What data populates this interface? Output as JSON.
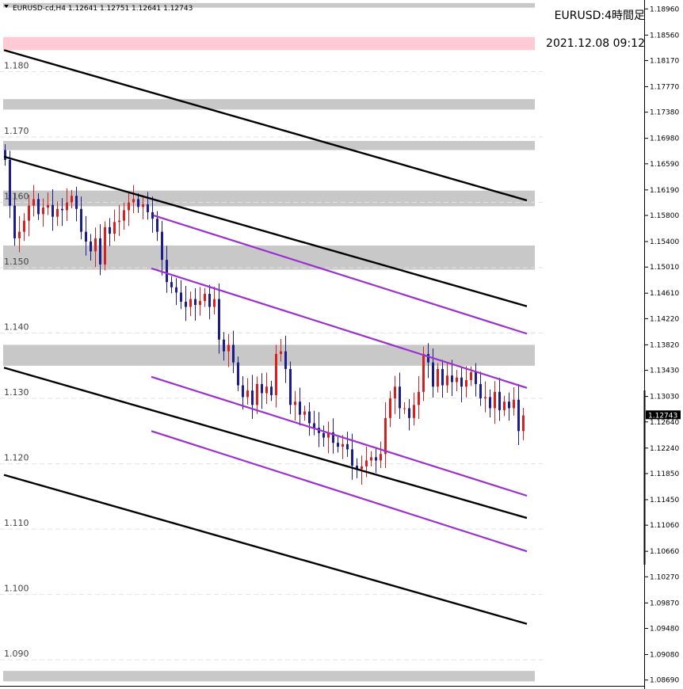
{
  "header": {
    "symbol_line": "EURUSD-cd,H4  1.12641 1.12751 1.12641 1.12743",
    "title": "EURUSD:4時間足",
    "timestamp": "2021.12.08 09:12"
  },
  "colors": {
    "bull": "#d62020",
    "bear": "#1c1c8a",
    "channel_black": "#000000",
    "channel_purple": "#9b30d0",
    "zone_gray": "#c8c8c8",
    "zone_pink": "#ffcad4",
    "grid": "#e2e2e2"
  },
  "chart_data": {
    "type": "candlestick",
    "ylim": [
      1.0865,
      1.1903
    ],
    "left_ticks": [
      "1.180",
      "1.170",
      "1.160",
      "1.150",
      "1.140",
      "1.130",
      "1.120",
      "1.110",
      "1.100",
      "1.090"
    ],
    "left_tick_values": [
      1.18,
      1.17,
      1.16,
      1.15,
      1.14,
      1.13,
      1.12,
      1.11,
      1.1,
      1.09
    ],
    "right_ticks": [
      "1.18960",
      "1.18560",
      "1.18170",
      "1.17770",
      "1.17380",
      "1.16980",
      "1.16590",
      "1.16190",
      "1.15800",
      "1.15400",
      "1.15010",
      "1.14610",
      "1.14220",
      "1.13820",
      "1.13430",
      "1.13030",
      "1.12640",
      "1.12240",
      "1.11850",
      "1.11450",
      "1.11060",
      "1.10660",
      "1.10270",
      "1.09870",
      "1.09480",
      "1.09080",
      "1.08690"
    ],
    "current_price": "1.12743",
    "current_value": 1.12743,
    "bars": 110,
    "zones": [
      {
        "from": 1.1898,
        "to": 1.1905,
        "color": "gray"
      },
      {
        "from": 1.1833,
        "to": 1.1853,
        "color": "pink"
      },
      {
        "from": 1.1742,
        "to": 1.1758,
        "color": "gray"
      },
      {
        "from": 1.168,
        "to": 1.1694,
        "color": "gray"
      },
      {
        "from": 1.1594,
        "to": 1.1618,
        "color": "gray"
      },
      {
        "from": 1.1497,
        "to": 1.1534,
        "color": "gray"
      },
      {
        "from": 1.135,
        "to": 1.1382,
        "color": "gray"
      },
      {
        "from": 1.0867,
        "to": 1.0883,
        "color": "gray"
      }
    ],
    "trendlines": [
      {
        "color": "black",
        "x1": 0,
        "y1": 1.1833,
        "x2": 110,
        "y2": 1.1603
      },
      {
        "color": "black",
        "x1": 0,
        "y1": 1.167,
        "x2": 110,
        "y2": 1.1441
      },
      {
        "color": "black",
        "x1": 0,
        "y1": 1.1347,
        "x2": 110,
        "y2": 1.1117
      },
      {
        "color": "black",
        "x1": 0,
        "y1": 1.1183,
        "x2": 110,
        "y2": 1.0955
      },
      {
        "color": "purple",
        "x1": 31.5,
        "y1": 1.158,
        "x2": 110,
        "y2": 1.1399
      },
      {
        "color": "purple",
        "x1": 31,
        "y1": 1.1499,
        "x2": 110,
        "y2": 1.1316
      },
      {
        "color": "purple",
        "x1": 31,
        "y1": 1.1333,
        "x2": 110,
        "y2": 1.1151
      },
      {
        "color": "purple",
        "x1": 31,
        "y1": 1.125,
        "x2": 110,
        "y2": 1.1066
      }
    ],
    "closes": [
      1.1665,
      1.1595,
      1.1545,
      1.1555,
      1.1572,
      1.1595,
      1.1605,
      1.1582,
      1.1592,
      1.1596,
      1.1578,
      1.159,
      1.1588,
      1.16,
      1.161,
      1.159,
      1.1555,
      1.154,
      1.1525,
      1.1545,
      1.1505,
      1.1562,
      1.1552,
      1.157,
      1.1572,
      1.1588,
      1.16,
      1.1605,
      1.1593,
      1.1597,
      1.1585,
      1.1575,
      1.1555,
      1.1512,
      1.1478,
      1.147,
      1.1462,
      1.1448,
      1.144,
      1.1452,
      1.1443,
      1.1449,
      1.146,
      1.144,
      1.1452,
      1.139,
      1.1372,
      1.1382,
      1.1355,
      1.132,
      1.1302,
      1.1312,
      1.129,
      1.1322,
      1.1308,
      1.1318,
      1.1305,
      1.1368,
      1.1372,
      1.1345,
      1.129,
      1.1295,
      1.1275,
      1.128,
      1.1262,
      1.1255,
      1.1247,
      1.124,
      1.1248,
      1.1232,
      1.1226,
      1.123,
      1.1222,
      1.1197,
      1.1192,
      1.1196,
      1.1205,
      1.121,
      1.1205,
      1.1215,
      1.127,
      1.13,
      1.1318,
      1.1285,
      1.1285,
      1.127,
      1.129,
      1.131,
      1.1368,
      1.1355,
      1.1318,
      1.1345,
      1.132,
      1.1335,
      1.1325,
      1.1332,
      1.1318,
      1.1328,
      1.134,
      1.1322,
      1.13,
      1.1302,
      1.1285,
      1.131,
      1.1282,
      1.1295,
      1.1285,
      1.1298,
      1.125,
      1.1274
    ]
  }
}
